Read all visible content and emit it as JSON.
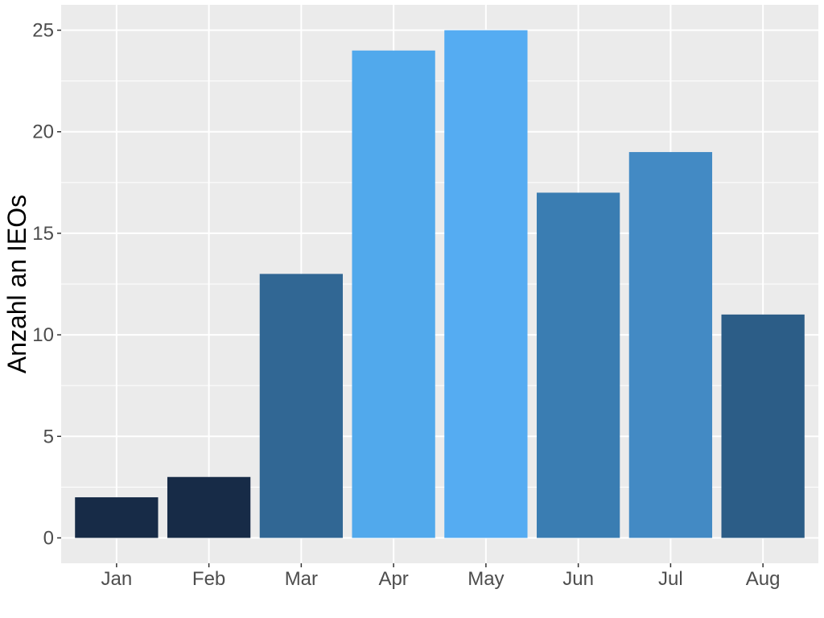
{
  "chart_data": {
    "type": "bar",
    "categories": [
      "Jan",
      "Feb",
      "Mar",
      "Apr",
      "May",
      "Jun",
      "Jul",
      "Aug"
    ],
    "values": [
      2,
      3,
      13,
      24,
      25,
      17,
      19,
      11
    ],
    "bar_colors": [
      "#172b47",
      "#172b47",
      "#316794",
      "#51a9ec",
      "#55acf2",
      "#3a7db2",
      "#438ac4",
      "#2c5d87"
    ],
    "xlabel": "",
    "ylabel": "Anzahl an IEOs",
    "ylim": [
      -1.25,
      26.25
    ],
    "yticks": [
      0,
      5,
      10,
      15,
      20,
      25
    ],
    "grid": true,
    "panel_background": "#ebebeb",
    "grid_color": "#ffffff"
  }
}
